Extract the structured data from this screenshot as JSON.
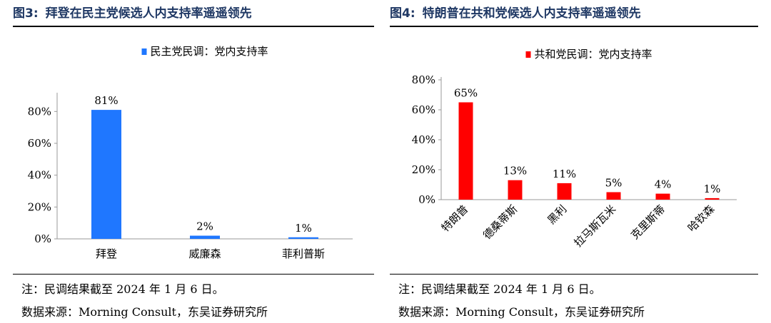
{
  "left": {
    "figure_label": "图3:",
    "title": "拜登在民主党候选人内支持率遥遥领先",
    "note": "注：民调结果截至 2024 年 1 月 6 日。",
    "source": "数据来源：Morning Consult，东吴证券研究所"
  },
  "right": {
    "figure_label": "图4:",
    "title": "特朗普在共和党候选人内支持率遥遥领先",
    "note": "注：民调结果截至 2024 年 1 月 6 日。",
    "source": "数据来源：Morning Consult，东吴证券研究所"
  },
  "chart_data": [
    {
      "type": "bar",
      "categories": [
        "拜登",
        "威廉森",
        "菲利普斯"
      ],
      "series": [
        {
          "name": "民主党民调：党内支持率",
          "values": [
            81,
            2,
            1
          ]
        }
      ],
      "data_labels": [
        "81%",
        "2%",
        "1%"
      ],
      "yticks": [
        "0%",
        "20%",
        "40%",
        "60%",
        "80%"
      ],
      "ylim": [
        0,
        90
      ],
      "legend": "top-center",
      "grid": false,
      "color": "#1f77ff"
    },
    {
      "type": "bar",
      "categories": [
        "特朗普",
        "德桑蒂斯",
        "黑利",
        "拉马斯瓦米",
        "克里斯蒂",
        "哈钦森"
      ],
      "series": [
        {
          "name": "共和党民调：党内支持率",
          "values": [
            65,
            13,
            11,
            5,
            4,
            1
          ]
        }
      ],
      "data_labels": [
        "65%",
        "13%",
        "11%",
        "5%",
        "4%",
        "1%"
      ],
      "yticks": [
        "0%",
        "20%",
        "40%",
        "60%",
        "80%"
      ],
      "ylim": [
        0,
        80
      ],
      "legend": "top-center",
      "grid": false,
      "color": "#ff0000"
    }
  ]
}
